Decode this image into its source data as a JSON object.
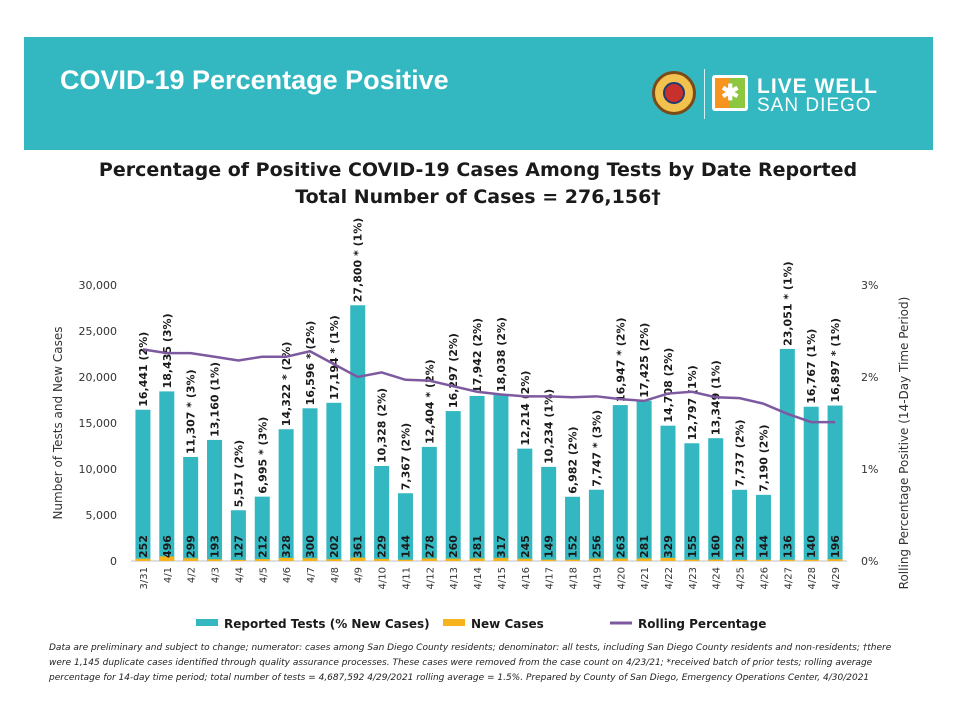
{
  "header": {
    "title": "COVID-19 Percentage Positive",
    "logo_line1": "LIVE WELL",
    "logo_line2": "SAN DIEGO",
    "banner_color": "#33b8c1"
  },
  "chart_data": {
    "type": "bar",
    "title": "Percentage of Positive COVID-19 Cases Among Tests by Date Reported",
    "subtitle": "Total Number of Cases = 276,156†",
    "ylabel": "Number of Tests and New Cases",
    "y2label": "Rolling Percentage Positive (14-Day Time Period)",
    "ylim": [
      0,
      30000
    ],
    "y_ticks": [
      "0",
      "5,000",
      "10,000",
      "15,000",
      "20,000",
      "25,000",
      "30,000"
    ],
    "y2lim": [
      0,
      3
    ],
    "y2_ticks": [
      "0%",
      "1%",
      "2%",
      "3%"
    ],
    "categories": [
      "3/31",
      "4/1",
      "4/2",
      "4/3",
      "4/4",
      "4/5",
      "4/6",
      "4/7",
      "4/8",
      "4/9",
      "4/10",
      "4/11",
      "4/12",
      "4/13",
      "4/14",
      "4/15",
      "4/16",
      "4/17",
      "4/18",
      "4/19",
      "4/20",
      "4/21",
      "4/22",
      "4/23",
      "4/24",
      "4/25",
      "4/26",
      "4/27",
      "4/28",
      "4/29"
    ],
    "series": [
      {
        "name": "Reported Tests (% New Cases)",
        "color": "#33b8c1",
        "values": [
          16441,
          18435,
          11307,
          13160,
          5517,
          6995,
          14322,
          16596,
          17194,
          27800,
          10328,
          7367,
          12404,
          16297,
          17942,
          18038,
          12214,
          10234,
          6982,
          7747,
          16947,
          17425,
          14708,
          12797,
          13349,
          7737,
          7190,
          23051,
          16767,
          16897
        ],
        "labels": [
          "16,441 (2%)",
          "18,435 (3%)",
          "11,307 * (3%)",
          "13,160 (1%)",
          "5,517 (2%)",
          "6,995 * (3%)",
          "14,322 * (2%)",
          "16,596 * (2%)",
          "17,194 * (1%)",
          "27,800 * (1%)",
          "10,328 (2%)",
          "7,367 (2%)",
          "12,404 * (2%)",
          "16,297 (2%)",
          "17,942 (2%)",
          "18,038 (2%)",
          "12,214 (2%)",
          "10,234 (1%)",
          "6,982 (2%)",
          "7,747 * (3%)",
          "16,947 * (2%)",
          "17,425 (2%)",
          "14,708 (2%)",
          "12,797 (1%)",
          "13,349 (1%)",
          "7,737 (2%)",
          "7,190 (2%)",
          "23,051 * (1%)",
          "16,767 (1%)",
          "16,897 * (1%)"
        ]
      },
      {
        "name": "New Cases",
        "color": "#f6b31b",
        "values": [
          252,
          496,
          299,
          193,
          127,
          212,
          328,
          300,
          202,
          361,
          229,
          144,
          278,
          260,
          281,
          317,
          245,
          149,
          152,
          256,
          263,
          281,
          329,
          155,
          160,
          129,
          144,
          136,
          140,
          196
        ]
      },
      {
        "name": "Rolling Percentage",
        "color": "#7d5aa0",
        "axis": "right",
        "values": [
          2.3,
          2.26,
          2.26,
          2.22,
          2.18,
          2.22,
          2.22,
          2.28,
          2.14,
          2.0,
          2.05,
          1.97,
          1.96,
          1.9,
          1.84,
          1.81,
          1.79,
          1.79,
          1.78,
          1.79,
          1.76,
          1.74,
          1.82,
          1.84,
          1.78,
          1.77,
          1.71,
          1.6,
          1.51,
          1.51
        ]
      }
    ],
    "legend_position": "bottom",
    "grid": false
  },
  "footnote": "Data are preliminary and subject to change; numerator: cases among San Diego County residents; denominator: all tests, including San Diego County residents and non-residents; †there were 1,145 duplicate cases identified through quality assurance processes. These cases were removed from the case count on 4/23/21; *received batch of prior tests; rolling average percentage for 14-day time period; total number of tests = 4,687,592 4/29/2021 rolling average = 1.5%. Prepared by County of San Diego, Emergency Operations Center, 4/30/2021"
}
